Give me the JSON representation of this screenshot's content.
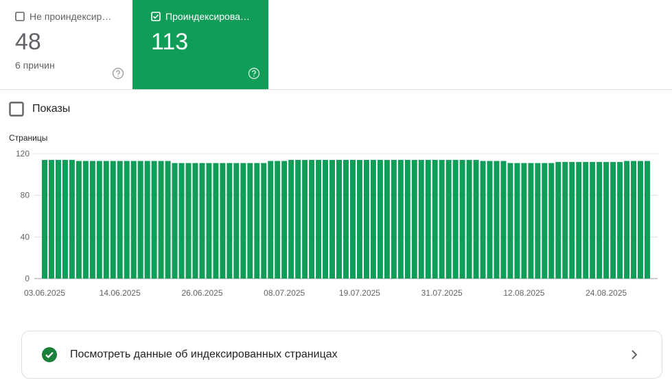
{
  "cards": [
    {
      "label": "Не проиндексир…",
      "value": "48",
      "sub": "6 причин"
    },
    {
      "label": "Проиндексирова…",
      "value": "113"
    }
  ],
  "toggle": "Показы",
  "chart_data": {
    "type": "bar",
    "ylabel": "Страницы",
    "color": "#0f9d58",
    "grid": true,
    "ylim": [
      0,
      120
    ],
    "yticks": [
      0,
      40,
      80,
      120
    ],
    "categories": [
      "03.06.2025",
      null,
      null,
      null,
      null,
      null,
      null,
      null,
      null,
      null,
      null,
      "14.06.2025",
      null,
      null,
      null,
      null,
      null,
      null,
      null,
      null,
      null,
      null,
      null,
      "26.06.2025",
      null,
      null,
      null,
      null,
      null,
      null,
      null,
      null,
      null,
      null,
      null,
      "08.07.2025",
      null,
      null,
      null,
      null,
      null,
      null,
      null,
      null,
      null,
      null,
      "19.07.2025",
      null,
      null,
      null,
      null,
      null,
      null,
      null,
      null,
      null,
      null,
      null,
      "31.07.2025",
      null,
      null,
      null,
      null,
      null,
      null,
      null,
      null,
      null,
      null,
      null,
      "12.08.2025",
      null,
      null,
      null,
      null,
      null,
      null,
      null,
      null,
      null,
      null,
      null,
      "24.08.2025",
      null,
      null,
      null,
      null,
      null,
      null
    ],
    "values": [
      114,
      114,
      114,
      114,
      114,
      113,
      113,
      113,
      113,
      113,
      113,
      113,
      113,
      113,
      113,
      113,
      113,
      113,
      113,
      111,
      111,
      111,
      111,
      111,
      111,
      111,
      111,
      111,
      111,
      111,
      111,
      111,
      111,
      113,
      113,
      113,
      114,
      114,
      114,
      114,
      114,
      114,
      114,
      114,
      114,
      114,
      114,
      114,
      114,
      114,
      114,
      114,
      114,
      114,
      114,
      114,
      114,
      114,
      114,
      114,
      114,
      114,
      114,
      114,
      113,
      113,
      113,
      113,
      111,
      111,
      111,
      111,
      111,
      111,
      111,
      112,
      112,
      112,
      112,
      112,
      112,
      112,
      112,
      112,
      112,
      113,
      113,
      113,
      113
    ]
  },
  "link": "Посмотреть данные об индексированных страницах"
}
